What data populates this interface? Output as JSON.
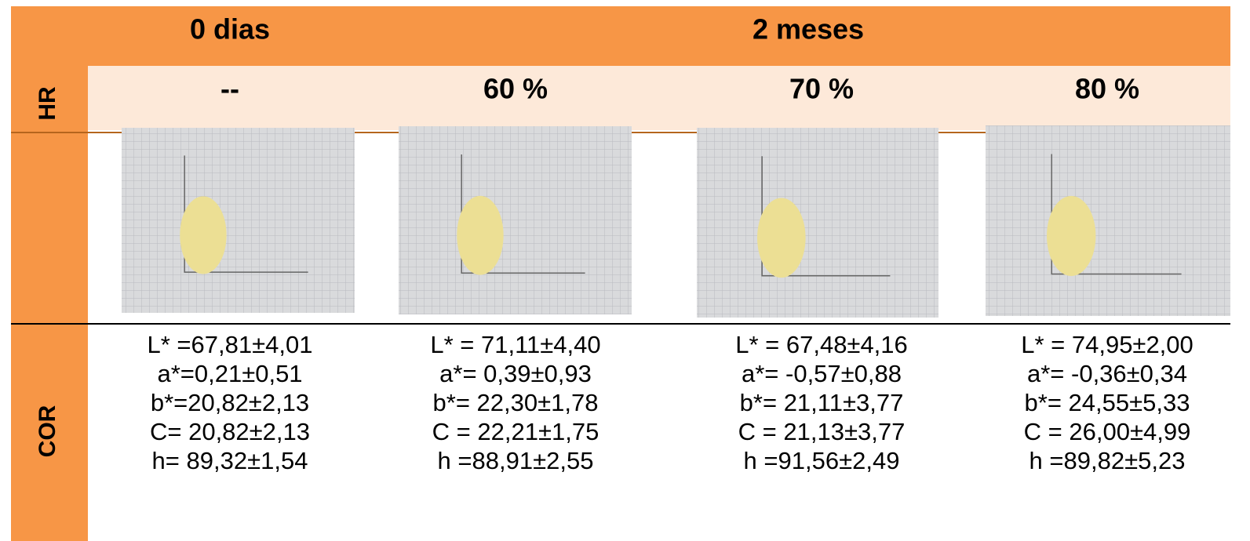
{
  "header": {
    "period_row": [
      "0 dias",
      "2 meses"
    ],
    "hr_label": "HR",
    "hr_row": [
      "--",
      "60 %",
      "70 %",
      "80 %"
    ],
    "cor_label": "COR"
  },
  "table": {
    "columns": [
      {
        "lines": [
          "L* =67,81±4,01",
          "a*=0,21±0,51",
          "b*=20,82±2,13",
          "C= 20,82±2,13",
          "h= 89,32±1,54"
        ]
      },
      {
        "lines": [
          "L* = 71,11±4,40",
          "a*= 0,39±0,93",
          "b*= 22,30±1,78",
          "C = 22,21±1,75",
          "h =88,91±2,55"
        ]
      },
      {
        "lines": [
          "L* = 67,48±4,16",
          "a*= -0,57±0,88",
          "b*= 21,11±3,77",
          "C = 21,13±3,77",
          "h =91,56±2,49"
        ]
      },
      {
        "lines": [
          "L* = 74,95±2,00",
          "a*= -0,36±0,34",
          "b*= 24,55±5,33",
          "C = 26,00±4,99",
          "h =89,82±5,23"
        ]
      }
    ]
  }
}
